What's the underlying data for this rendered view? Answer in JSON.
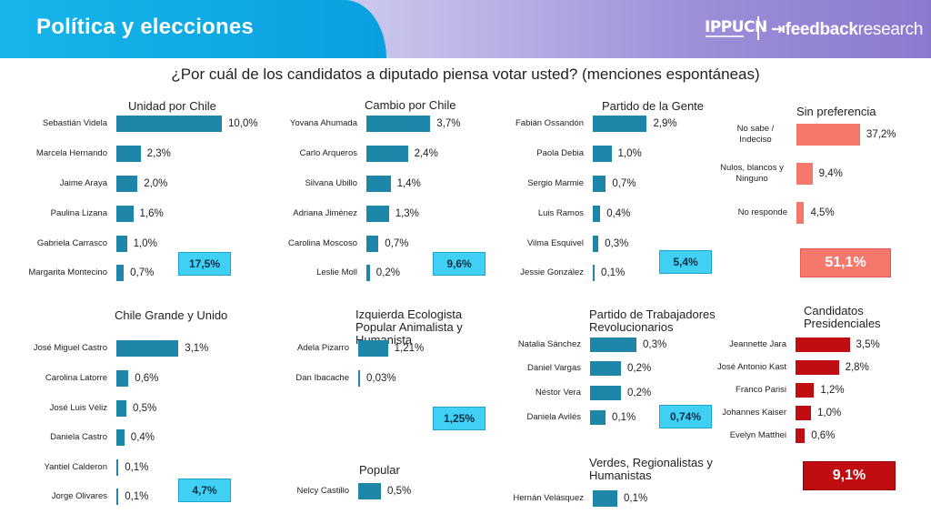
{
  "header": {
    "title": "Política y elecciones",
    "logo_ippucn": "IPPUCN",
    "logo_feedback_bold": "feedback",
    "logo_feedback_rest": "research"
  },
  "question": "¿Por cuál de los candidatos a diputado piensa votar usted? (menciones espontáneas)",
  "colors": {
    "blue": "#1e87a9",
    "salmon": "#f5786c",
    "red": "#c00d11",
    "cyan": "#3fd0f4"
  },
  "chart_data": [
    {
      "id": "unidad",
      "type": "bar",
      "title": "Unidad por Chile",
      "color": "blue",
      "total": "17,5%",
      "xlim": [
        0,
        10.0
      ],
      "categories": [
        "Sebastián Videla",
        "Marcela Hernando",
        "Jaime Araya",
        "Paulina Lizana",
        "Gabriela Carrasco",
        "Margarita Montecino"
      ],
      "values": [
        10.0,
        2.3,
        2.0,
        1.6,
        1.0,
        0.7
      ],
      "labels": [
        "10,0%",
        "2,3%",
        "2,0%",
        "1,6%",
        "1,0%",
        "0,7%"
      ]
    },
    {
      "id": "cambio",
      "type": "bar",
      "title": "Cambio por Chile",
      "color": "blue",
      "total": "9,6%",
      "xlim": [
        0,
        10.0
      ],
      "categories": [
        "Yovana Ahumada",
        "Carlo Arqueros",
        "Silvana Ubillo",
        "Adriana Jiménez",
        "Carolina Moscoso",
        "Leslie Moll"
      ],
      "values": [
        3.7,
        2.4,
        1.4,
        1.3,
        0.7,
        0.2
      ],
      "labels": [
        "3,7%",
        "2,4%",
        "1,4%",
        "1,3%",
        "0,7%",
        "0,2%"
      ]
    },
    {
      "id": "gente",
      "type": "bar",
      "title": "Partido de la Gente",
      "color": "blue",
      "total": "5,4%",
      "xlim": [
        0,
        10.0
      ],
      "categories": [
        "Fabián Ossandón",
        "Paola Debia",
        "Sergio Marmie",
        "Luis Ramos",
        "Vilma Esquivel",
        "Jessie González"
      ],
      "values": [
        2.9,
        1.0,
        0.7,
        0.4,
        0.3,
        0.1
      ],
      "labels": [
        "2,9%",
        "1,0%",
        "0,7%",
        "0,4%",
        "0,3%",
        "0,1%"
      ]
    },
    {
      "id": "sinpref",
      "type": "bar",
      "title": "Sin preferencia",
      "color": "salmon",
      "total": "51,1%",
      "xlim": [
        0,
        60.0
      ],
      "categories": [
        "No sabe / Indeciso",
        "Nulos, blancos y Ninguno",
        "No responde"
      ],
      "values": [
        37.2,
        9.4,
        4.5
      ],
      "labels": [
        "37,2%",
        "9,4%",
        "4,5%"
      ]
    },
    {
      "id": "grande",
      "type": "bar",
      "title": "Chile Grande y Unido",
      "color": "blue",
      "total": "4,7%",
      "xlim": [
        0,
        10.0
      ],
      "categories": [
        "José Miguel Castro",
        "Carolina Latorre",
        "José Luis Véliz",
        "Daniela Castro",
        "Yantiel Calderon",
        "Jorge Olivares"
      ],
      "values": [
        3.1,
        0.6,
        0.5,
        0.4,
        0.1,
        0.1
      ],
      "labels": [
        "3,1%",
        "0,6%",
        "0,5%",
        "0,4%",
        "0,1%",
        "0,1%"
      ]
    },
    {
      "id": "izquierda",
      "type": "bar",
      "title": "Izquierda Ecologista Popular Animalista y Humanista",
      "color": "blue",
      "total": "1,25%",
      "xlim": [
        0,
        10.0
      ],
      "categories": [
        "Adela Pizarro",
        "Dan Ibacache"
      ],
      "values": [
        1.21,
        0.03
      ],
      "labels": [
        "1,21%",
        "0,03%"
      ]
    },
    {
      "id": "popular",
      "type": "bar",
      "title": "Popular",
      "color": "blue",
      "xlim": [
        0,
        10.0
      ],
      "categories": [
        "Nelcy Castillo"
      ],
      "values": [
        0.5
      ],
      "labels": [
        "0,5%"
      ]
    },
    {
      "id": "trabajadores",
      "type": "bar",
      "title": "Partido de Trabajadores Revolucionarios",
      "color": "blue",
      "total": "0,74%",
      "xlim": [
        0,
        10.0
      ],
      "categories": [
        "Natalia Sánchez",
        "Daniel Vargas",
        "Néstor Vera",
        "Daniela Avilés"
      ],
      "values": [
        0.3,
        0.2,
        0.2,
        0.1
      ],
      "labels": [
        "0,3%",
        "0,2%",
        "0,2%",
        "0,1%"
      ]
    },
    {
      "id": "verdes",
      "type": "bar",
      "title": "Verdes, Regionalistas y Humanistas",
      "color": "blue",
      "xlim": [
        0,
        10.0
      ],
      "categories": [
        "Hernán Velásquez"
      ],
      "values": [
        0.1
      ],
      "labels": [
        "0,1%"
      ]
    },
    {
      "id": "presidenciales",
      "type": "bar",
      "title": "Candidatos Presidenciales",
      "color": "red",
      "total": "9,1%",
      "xlim": [
        0,
        10.0
      ],
      "categories": [
        "Jeannette Jara",
        "José Antonio Kast",
        "Franco Parisi",
        "Johannes Kaiser",
        "Evelyn Matthei"
      ],
      "values": [
        3.5,
        2.8,
        1.2,
        1.0,
        0.6
      ],
      "labels": [
        "3,5%",
        "2,8%",
        "1,2%",
        "1,0%",
        "0,6%"
      ]
    }
  ]
}
